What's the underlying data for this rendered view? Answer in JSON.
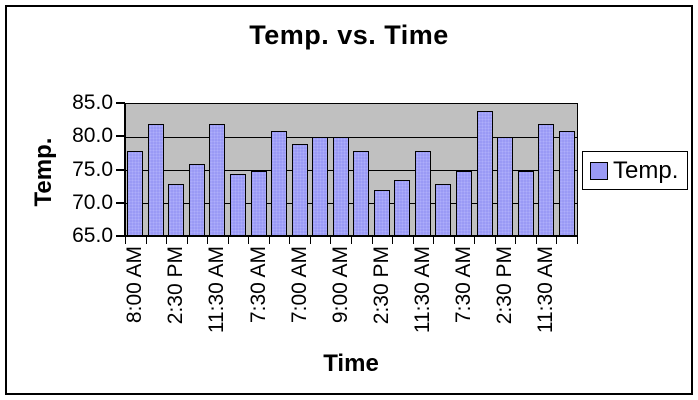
{
  "title": "Temp. vs. Time",
  "y_axis": {
    "title": "Temp."
  },
  "x_axis": {
    "title": "Time"
  },
  "legend": {
    "label": "Temp."
  },
  "colors": {
    "bar_fill": "#9a9af5",
    "plot_background": "#c0c0c0",
    "axis": "#000000",
    "chart_background": "#ffffff"
  },
  "chart_data": {
    "type": "bar",
    "title": "Temp. vs. Time",
    "xlabel": "Time",
    "ylabel": "Temp.",
    "series_name": "Temp.",
    "values": [
      78,
      82,
      73,
      76,
      82,
      74.5,
      75,
      81,
      79,
      80,
      80,
      78,
      72,
      73.5,
      78,
      73,
      75,
      84,
      80,
      75,
      82,
      81
    ],
    "x_tick_labels": [
      "8:00 AM",
      "2:30 PM",
      "11:30 AM",
      "7:30 AM",
      "7:00 AM",
      "9:00 AM",
      "2:30 PM",
      "11:30 AM",
      "7:30 AM",
      "2:30 PM",
      "11:30 AM"
    ],
    "label_every": 2,
    "ylim": [
      65,
      85
    ],
    "y_ticks": [
      85,
      80,
      75,
      70,
      65
    ],
    "y_tick_labels": [
      "85.0",
      "80.0",
      "75.0",
      "70.0",
      "65.0"
    ],
    "gridlines": [
      80,
      75,
      70
    ],
    "grid": true,
    "legend_position": "right"
  }
}
